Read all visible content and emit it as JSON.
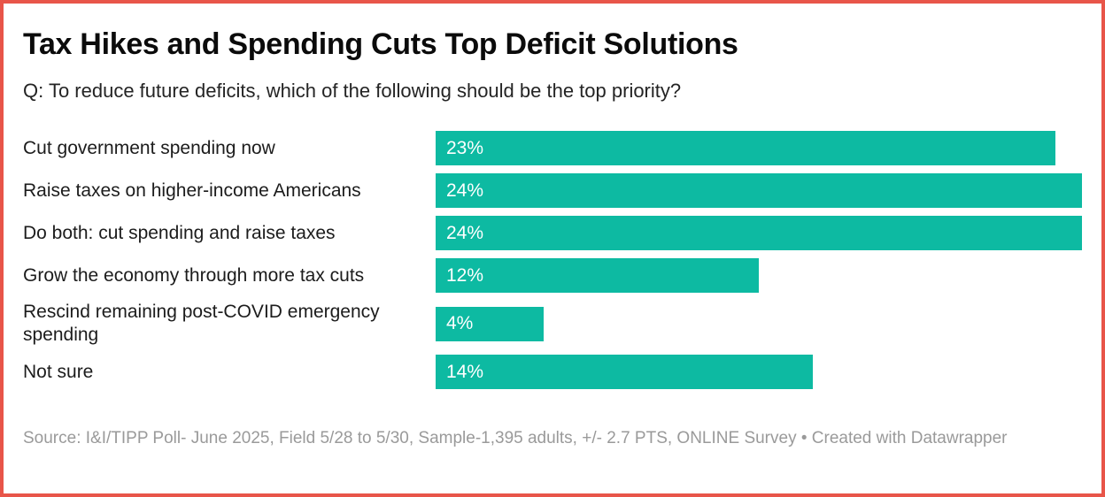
{
  "frame": {
    "border_color": "#e85549",
    "background_color": "#ffffff"
  },
  "chart_data": {
    "type": "bar",
    "orientation": "horizontal",
    "title": "Tax Hikes and Spending Cuts Top Deficit Solutions",
    "subtitle": "Q: To reduce future deficits, which of the following should be the top priority?",
    "categories": [
      "Cut government spending now",
      "Raise taxes on higher-income Americans",
      "Do both: cut spending and raise taxes",
      "Grow the economy through more tax cuts",
      "Rescind remaining post-COVID emergency spending",
      "Not sure"
    ],
    "values": [
      23,
      24,
      24,
      12,
      4,
      14
    ],
    "value_suffix": "%",
    "xlim": [
      0,
      24
    ],
    "grid": false,
    "legend": false,
    "bar_color": "#0dbaa2",
    "value_label_color": "#ffffff"
  },
  "footer": {
    "source": "Source: I&I/TIPP Poll- June 2025, Field 5/28 to 5/30, Sample-1,395 adults, +/- 2.7 PTS, ONLINE Survey • Created with Datawrapper"
  }
}
